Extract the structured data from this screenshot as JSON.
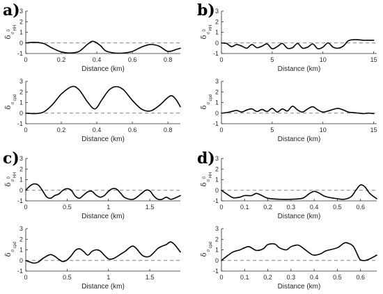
{
  "figure": {
    "panels": [
      {
        "label": "a)",
        "plots": [
          {
            "ylabel_main": "δ",
            "ylabel_sub": "σ",
            "ylabel_subsup": "0",
            "ylabel_subsub": "HH",
            "xlabel": "Distance (km)",
            "xlim": [
              0,
              0.87
            ],
            "ylim": [
              -1,
              3
            ],
            "xticks": [
              0,
              0.2,
              0.4,
              0.6,
              0.8
            ],
            "xticklabels": [
              "0",
              "0.2",
              "0.4",
              "0.6",
              "0.8"
            ],
            "yticks": [
              -1,
              0,
              1,
              2,
              3
            ],
            "yticklabels": [
              "-1",
              "0",
              "1",
              "2",
              "3"
            ]
          },
          {
            "ylabel_main": "δ",
            "ylabel_sub": "σ",
            "ylabel_subsub": "cpd",
            "xlabel": "Distance (km)",
            "xlim": [
              0,
              0.87
            ],
            "ylim": [
              -1,
              3
            ],
            "xticks": [
              0,
              0.2,
              0.4,
              0.6,
              0.8
            ],
            "xticklabels": [
              "0",
              "0.2",
              "0.4",
              "0.6",
              "0.8"
            ],
            "yticks": [
              -1,
              0,
              1,
              2,
              3
            ],
            "yticklabels": [
              "-1",
              "0",
              "1",
              "2",
              "3"
            ]
          }
        ]
      },
      {
        "label": "b)",
        "plots": [
          {
            "ylabel_main": "δ",
            "ylabel_sub": "σ",
            "ylabel_subsup": "0",
            "ylabel_subsub": "HH",
            "xlabel": "Distance (km)",
            "xlim": [
              0,
              15.3
            ],
            "ylim": [
              -1,
              3
            ],
            "xticks": [
              0,
              5,
              10,
              15
            ],
            "xticklabels": [
              "0",
              "5",
              "10",
              "15"
            ],
            "yticks": [
              -1,
              0,
              1,
              2,
              3
            ],
            "yticklabels": [
              "-1",
              "0",
              "1",
              "2",
              "3"
            ]
          },
          {
            "ylabel_main": "δ",
            "ylabel_sub": "σ",
            "ylabel_subsub": "cpd",
            "xlabel": "Distance (km)",
            "xlim": [
              0,
              15.3
            ],
            "ylim": [
              -1,
              3
            ],
            "xticks": [
              0,
              5,
              10,
              15
            ],
            "xticklabels": [
              "0",
              "5",
              "10",
              "15"
            ],
            "yticks": [
              -1,
              0,
              1,
              2,
              3
            ],
            "yticklabels": [
              "-1",
              "0",
              "1",
              "2",
              "3"
            ]
          }
        ]
      },
      {
        "label": "c)",
        "plots": [
          {
            "ylabel_main": "δ",
            "ylabel_sub": "σ",
            "ylabel_subsup": "0",
            "ylabel_subsub": "HH",
            "xlabel": "Distance (km)",
            "xlim": [
              0,
              1.87
            ],
            "ylim": [
              -1,
              3
            ],
            "xticks": [
              0,
              0.5,
              1,
              1.5
            ],
            "xticklabels": [
              "0",
              "0.5",
              "1",
              "1.5"
            ],
            "yticks": [
              -1,
              0,
              1,
              2,
              3
            ],
            "yticklabels": [
              "-1",
              "0",
              "1",
              "2",
              "3"
            ]
          },
          {
            "ylabel_main": "δ",
            "ylabel_sub": "σ",
            "ylabel_subsub": "cpd",
            "xlabel": "Distance (km)",
            "xlim": [
              0,
              1.87
            ],
            "ylim": [
              -1,
              3
            ],
            "xticks": [
              0,
              0.5,
              1,
              1.5
            ],
            "xticklabels": [
              "0",
              "0.5",
              "1",
              "1.5"
            ],
            "yticks": [
              -1,
              0,
              1,
              2,
              3
            ],
            "yticklabels": [
              "-1",
              "0",
              "1",
              "2",
              "3"
            ]
          }
        ]
      },
      {
        "label": "d)",
        "plots": [
          {
            "ylabel_main": "δ",
            "ylabel_sub": "σ",
            "ylabel_subsup": "0",
            "ylabel_subsub": "HH",
            "xlabel": "Distance (km)",
            "xlim": [
              0,
              0.67
            ],
            "ylim": [
              -1,
              3
            ],
            "xticks": [
              0,
              0.1,
              0.2,
              0.3,
              0.4,
              0.5,
              0.6
            ],
            "xticklabels": [
              "0",
              "0.1",
              "0.2",
              "0.3",
              "0.4",
              "0.5",
              "0.6"
            ],
            "yticks": [
              -1,
              0,
              1,
              2,
              3
            ],
            "yticklabels": [
              "-1",
              "0",
              "1",
              "2",
              "3"
            ]
          },
          {
            "ylabel_main": "δ",
            "ylabel_sub": "σ",
            "ylabel_subsub": "cpd",
            "xlabel": "Distance (km)",
            "xlim": [
              0,
              0.67
            ],
            "ylim": [
              -1,
              3
            ],
            "xticks": [
              0,
              0.1,
              0.2,
              0.3,
              0.4,
              0.5,
              0.6
            ],
            "xticklabels": [
              "0",
              "0.1",
              "0.2",
              "0.3",
              "0.4",
              "0.5",
              "0.6"
            ],
            "yticks": [
              -1,
              0,
              1,
              2,
              3
            ],
            "yticklabels": [
              "-1",
              "0",
              "1",
              "2",
              "3"
            ]
          }
        ]
      }
    ],
    "colors": {
      "line": "#000000",
      "zero_line": "#808080",
      "axis": "#262626"
    }
  },
  "chart_data": [
    {
      "type": "line",
      "panel": "a)",
      "title": "",
      "xlabel": "Distance (km)",
      "ylabel": "δσ0HH",
      "xlim": [
        0,
        0.87
      ],
      "ylim": [
        -1,
        3
      ],
      "grid": false,
      "reference_line_y": 0,
      "series": [
        {
          "x": [
            0,
            0.05,
            0.1,
            0.15,
            0.2,
            0.25,
            0.3,
            0.35,
            0.38,
            0.42,
            0.45,
            0.5,
            0.55,
            0.6,
            0.65,
            0.7,
            0.75,
            0.8,
            0.85,
            0.87
          ],
          "y": [
            0,
            0.05,
            -0.05,
            -0.5,
            -0.85,
            -0.95,
            -0.8,
            -0.1,
            0.15,
            -0.25,
            -0.75,
            -0.95,
            -0.95,
            -0.8,
            -0.4,
            -0.15,
            -0.3,
            -0.8,
            -0.6,
            -0.5
          ]
        }
      ]
    },
    {
      "type": "line",
      "panel": "a)",
      "title": "",
      "xlabel": "Distance (km)",
      "ylabel": "δσ cpd",
      "xlim": [
        0,
        0.87
      ],
      "ylim": [
        -1,
        3
      ],
      "grid": false,
      "reference_line_y": 0,
      "series": [
        {
          "x": [
            0,
            0.05,
            0.1,
            0.15,
            0.2,
            0.26,
            0.3,
            0.35,
            0.39,
            0.43,
            0.47,
            0.51,
            0.55,
            0.6,
            0.65,
            0.7,
            0.75,
            0.81,
            0.84,
            0.87
          ],
          "y": [
            0,
            -0.05,
            0.1,
            0.8,
            1.8,
            2.5,
            2.2,
            1.0,
            0.4,
            1.3,
            2.2,
            2.5,
            2.2,
            1.2,
            0.4,
            0.2,
            0.7,
            1.6,
            1.4,
            0.6
          ]
        }
      ]
    },
    {
      "type": "line",
      "panel": "b)",
      "title": "",
      "xlabel": "Distance (km)",
      "ylabel": "δσ0HH",
      "xlim": [
        0,
        15.3
      ],
      "ylim": [
        -1,
        3
      ],
      "grid": false,
      "reference_line_y": 0,
      "series": [
        {
          "x": [
            0,
            0.5,
            1,
            1.5,
            2,
            2.5,
            3,
            3.5,
            4,
            4.5,
            5,
            5.5,
            6,
            6.5,
            7,
            7.5,
            8,
            8.5,
            9,
            9.5,
            10,
            10.5,
            11,
            11.5,
            12,
            12.5,
            13,
            13.5,
            14,
            14.5,
            15
          ],
          "y": [
            0,
            -0.05,
            -0.35,
            -0.15,
            -0.3,
            -0.5,
            -0.15,
            -0.45,
            -0.3,
            -0.1,
            -0.55,
            -0.35,
            -0.05,
            -0.5,
            -0.45,
            -0.05,
            -0.5,
            -0.4,
            -0.1,
            -0.55,
            -0.4,
            0.0,
            -0.4,
            -0.5,
            -0.3,
            0.2,
            0.3,
            0.3,
            0.25,
            0.25,
            0.25
          ]
        }
      ]
    },
    {
      "type": "line",
      "panel": "b)",
      "title": "",
      "xlabel": "Distance (km)",
      "ylabel": "δσ cpd",
      "xlim": [
        0,
        15.3
      ],
      "ylim": [
        -1,
        3
      ],
      "grid": false,
      "reference_line_y": 0,
      "series": [
        {
          "x": [
            0,
            0.5,
            1,
            1.5,
            2,
            2.5,
            3,
            3.5,
            4,
            4.5,
            5,
            5.5,
            6,
            6.5,
            7,
            7.5,
            8,
            8.5,
            9,
            9.5,
            10,
            10.5,
            11,
            11.5,
            12,
            12.5,
            13,
            13.5,
            14,
            14.5,
            15
          ],
          "y": [
            0,
            0.05,
            0.15,
            0.25,
            0.1,
            0.3,
            0.4,
            0.15,
            0.35,
            0.15,
            0.45,
            0.1,
            0.4,
            0.2,
            0.65,
            0.3,
            0.1,
            0.4,
            0.6,
            0.3,
            0.1,
            0.2,
            0.35,
            0.45,
            0.3,
            0.1,
            0.05,
            0.0,
            -0.05,
            0.0,
            -0.05
          ]
        }
      ]
    },
    {
      "type": "line",
      "panel": "c)",
      "title": "",
      "xlabel": "Distance (km)",
      "ylabel": "δσ0HH",
      "xlim": [
        0,
        1.87
      ],
      "ylim": [
        -1,
        3
      ],
      "grid": false,
      "reference_line_y": 0,
      "series": [
        {
          "x": [
            0,
            0.05,
            0.1,
            0.15,
            0.2,
            0.25,
            0.3,
            0.35,
            0.4,
            0.45,
            0.5,
            0.55,
            0.6,
            0.65,
            0.7,
            0.75,
            0.8,
            0.85,
            0.9,
            0.95,
            1.0,
            1.05,
            1.1,
            1.15,
            1.2,
            1.3,
            1.4,
            1.45,
            1.5,
            1.55,
            1.6,
            1.65,
            1.7,
            1.75,
            1.8,
            1.87
          ],
          "y": [
            0,
            0.4,
            0.6,
            0.5,
            0.0,
            -0.6,
            -0.75,
            -0.5,
            -0.35,
            0.0,
            0.15,
            0.0,
            -0.55,
            -0.75,
            -0.45,
            -0.15,
            -0.1,
            -0.45,
            -0.65,
            -0.5,
            -0.1,
            0.15,
            0.1,
            -0.3,
            -0.7,
            -0.85,
            -0.3,
            0.0,
            -0.05,
            -0.55,
            -0.85,
            -0.85,
            -0.65,
            -0.85,
            -0.75,
            -0.5
          ]
        }
      ]
    },
    {
      "type": "line",
      "panel": "c)",
      "title": "",
      "xlabel": "Distance (km)",
      "ylabel": "δσ cpd",
      "xlim": [
        0,
        1.87
      ],
      "ylim": [
        -1,
        3
      ],
      "grid": false,
      "reference_line_y": 0,
      "series": [
        {
          "x": [
            0,
            0.05,
            0.1,
            0.15,
            0.2,
            0.25,
            0.3,
            0.35,
            0.4,
            0.45,
            0.5,
            0.55,
            0.6,
            0.65,
            0.7,
            0.75,
            0.8,
            0.85,
            0.9,
            0.95,
            1.0,
            1.05,
            1.1,
            1.15,
            1.2,
            1.3,
            1.4,
            1.45,
            1.5,
            1.55,
            1.6,
            1.65,
            1.7,
            1.75,
            1.8,
            1.87
          ],
          "y": [
            0,
            -0.15,
            -0.25,
            -0.15,
            0.15,
            0.4,
            0.55,
            0.4,
            0.1,
            -0.1,
            0.05,
            0.45,
            0.95,
            1.1,
            0.85,
            0.5,
            0.85,
            1.0,
            0.9,
            0.5,
            0.15,
            0.15,
            0.35,
            0.6,
            0.85,
            1.35,
            0.55,
            0.35,
            0.4,
            0.75,
            1.15,
            1.35,
            1.5,
            1.75,
            1.5,
            0.8
          ]
        }
      ]
    },
    {
      "type": "line",
      "panel": "d)",
      "title": "",
      "xlabel": "Distance (km)",
      "ylabel": "δσ0HH",
      "xlim": [
        0,
        0.67
      ],
      "ylim": [
        -1,
        3
      ],
      "grid": false,
      "reference_line_y": 0,
      "series": [
        {
          "x": [
            0,
            0.02,
            0.05,
            0.08,
            0.1,
            0.13,
            0.15,
            0.17,
            0.2,
            0.25,
            0.3,
            0.35,
            0.38,
            0.4,
            0.42,
            0.45,
            0.5,
            0.53,
            0.56,
            0.58,
            0.6,
            0.62,
            0.64,
            0.67
          ],
          "y": [
            0,
            -0.3,
            -0.7,
            -0.65,
            -0.5,
            -0.5,
            -0.3,
            -0.45,
            -0.75,
            -0.85,
            -0.85,
            -0.75,
            -0.3,
            -0.1,
            -0.25,
            -0.6,
            -0.8,
            -0.85,
            -0.6,
            0.0,
            0.5,
            0.3,
            -0.3,
            -0.8
          ]
        }
      ]
    },
    {
      "type": "line",
      "panel": "d)",
      "title": "",
      "xlabel": "Distance (km)",
      "ylabel": "δσ cpd",
      "xlim": [
        0,
        0.67
      ],
      "ylim": [
        -1,
        3
      ],
      "grid": false,
      "reference_line_y": 0,
      "series": [
        {
          "x": [
            0,
            0.02,
            0.05,
            0.08,
            0.1,
            0.12,
            0.15,
            0.18,
            0.2,
            0.23,
            0.25,
            0.28,
            0.3,
            0.33,
            0.35,
            0.38,
            0.4,
            0.43,
            0.45,
            0.5,
            0.53,
            0.55,
            0.57,
            0.59,
            0.6,
            0.62,
            0.64,
            0.67
          ],
          "y": [
            0,
            0.35,
            0.8,
            1.0,
            1.2,
            1.3,
            0.95,
            1.1,
            1.5,
            1.55,
            1.2,
            1.0,
            1.3,
            1.45,
            1.2,
            0.7,
            0.5,
            0.65,
            0.9,
            1.2,
            1.65,
            1.6,
            1.3,
            0.4,
            0.05,
            0.0,
            0.15,
            0.5
          ]
        }
      ]
    }
  ]
}
